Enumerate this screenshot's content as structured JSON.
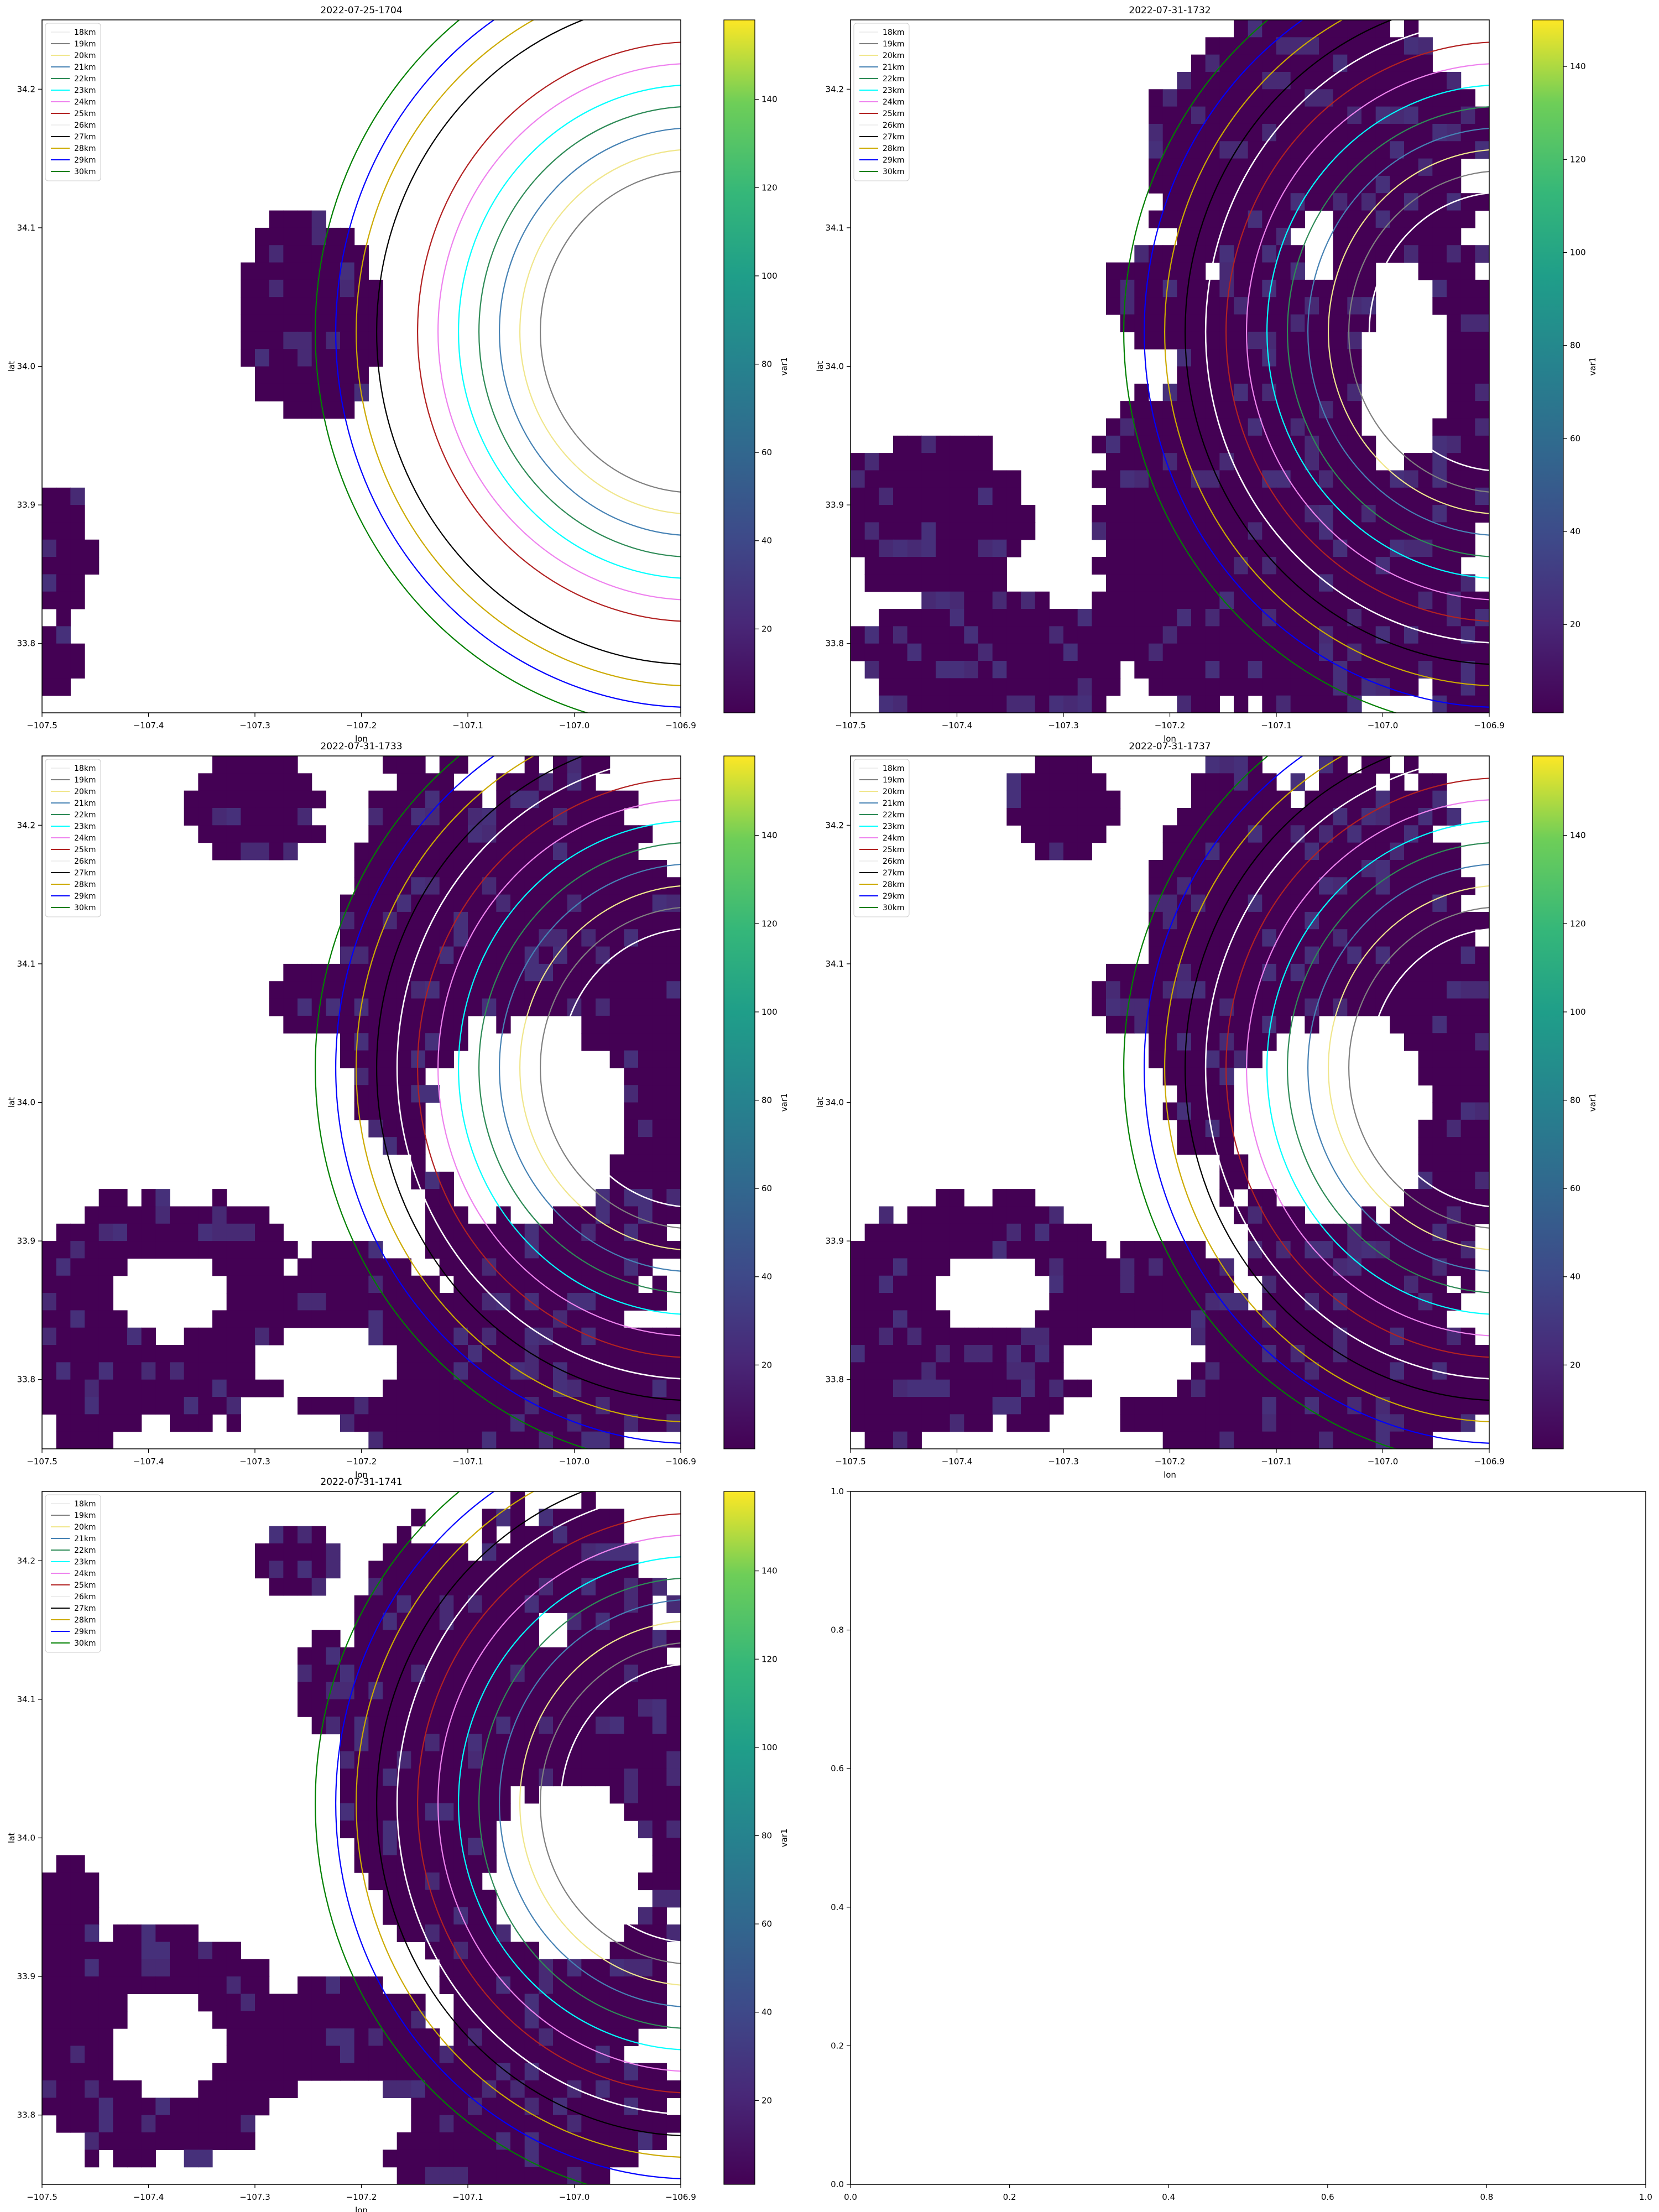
{
  "figure": {
    "colorbar_label": "var1",
    "colorbar_ticks": [
      "20",
      "40",
      "60",
      "80",
      "100",
      "120",
      "140"
    ],
    "x_ticks": [
      "−107.5",
      "−107.4",
      "−107.3",
      "−107.2",
      "−107.1",
      "−107.0",
      "−106.9"
    ],
    "y_ticks": [
      "33.8",
      "33.9",
      "34.0",
      "34.1",
      "34.2"
    ],
    "empty_x_ticks": [
      "0.0",
      "0.2",
      "0.4",
      "0.6",
      "0.8",
      "1.0"
    ],
    "empty_y_ticks": [
      "0.0",
      "0.2",
      "0.4",
      "0.6",
      "0.8",
      "1.0"
    ],
    "colormap": "viridis",
    "data_color": "#440154"
  },
  "chart_data": [
    {
      "type": "heatmap",
      "title": "2022-07-25-1704",
      "xlabel": "lon",
      "ylabel": "lat",
      "xlim": [
        -107.5,
        -106.9
      ],
      "ylim": [
        33.75,
        34.25
      ],
      "colorbar": {
        "label": "var1",
        "range": [
          1,
          158
        ]
      },
      "legend_position": "upper left",
      "series": [
        {
          "name": "18km",
          "radius_km": 18,
          "color": "#ffffff"
        },
        {
          "name": "19km",
          "radius_km": 19,
          "color": "#808080"
        },
        {
          "name": "20km",
          "radius_km": 20,
          "color": "#f0e68c"
        },
        {
          "name": "21km",
          "radius_km": 21,
          "color": "#4682b4"
        },
        {
          "name": "22km",
          "radius_km": 22,
          "color": "#2e8b57"
        },
        {
          "name": "23km",
          "radius_km": 23,
          "color": "#00ffff"
        },
        {
          "name": "24km",
          "radius_km": 24,
          "color": "#ee82ee"
        },
        {
          "name": "25km",
          "radius_km": 25,
          "color": "#b22222"
        },
        {
          "name": "26km",
          "radius_km": 26,
          "color": "#ffffff"
        },
        {
          "name": "27km",
          "radius_km": 27,
          "color": "#000000"
        },
        {
          "name": "28km",
          "radius_km": 28,
          "color": "#ccaa00"
        },
        {
          "name": "29km",
          "radius_km": 29,
          "color": "#0000ff"
        },
        {
          "name": "30km",
          "radius_km": 30,
          "color": "#008000"
        }
      ]
    },
    {
      "type": "heatmap",
      "title": "2022-07-31-1732",
      "xlabel": "lon",
      "ylabel": "lat",
      "xlim": [
        -107.5,
        -106.9
      ],
      "ylim": [
        33.75,
        34.25
      ],
      "colorbar": {
        "label": "var1",
        "range": [
          1,
          150
        ]
      },
      "legend_position": "upper left",
      "series": [
        {
          "name": "18km",
          "radius_km": 18,
          "color": "#ffffff"
        },
        {
          "name": "19km",
          "radius_km": 19,
          "color": "#808080"
        },
        {
          "name": "20km",
          "radius_km": 20,
          "color": "#f0e68c"
        },
        {
          "name": "21km",
          "radius_km": 21,
          "color": "#4682b4"
        },
        {
          "name": "22km",
          "radius_km": 22,
          "color": "#2e8b57"
        },
        {
          "name": "23km",
          "radius_km": 23,
          "color": "#00ffff"
        },
        {
          "name": "24km",
          "radius_km": 24,
          "color": "#ee82ee"
        },
        {
          "name": "25km",
          "radius_km": 25,
          "color": "#b22222"
        },
        {
          "name": "26km",
          "radius_km": 26,
          "color": "#ffffff"
        },
        {
          "name": "27km",
          "radius_km": 27,
          "color": "#000000"
        },
        {
          "name": "28km",
          "radius_km": 28,
          "color": "#ccaa00"
        },
        {
          "name": "29km",
          "radius_km": 29,
          "color": "#0000ff"
        },
        {
          "name": "30km",
          "radius_km": 30,
          "color": "#008000"
        }
      ]
    },
    {
      "type": "heatmap",
      "title": "2022-07-31-1733",
      "xlabel": "lon",
      "ylabel": "lat",
      "xlim": [
        -107.5,
        -106.9
      ],
      "ylim": [
        33.75,
        34.25
      ],
      "colorbar": {
        "label": "var1",
        "range": [
          1,
          158
        ]
      },
      "legend_position": "upper left",
      "series": [
        {
          "name": "18km",
          "radius_km": 18,
          "color": "#ffffff"
        },
        {
          "name": "19km",
          "radius_km": 19,
          "color": "#808080"
        },
        {
          "name": "20km",
          "radius_km": 20,
          "color": "#f0e68c"
        },
        {
          "name": "21km",
          "radius_km": 21,
          "color": "#4682b4"
        },
        {
          "name": "22km",
          "radius_km": 22,
          "color": "#2e8b57"
        },
        {
          "name": "23km",
          "radius_km": 23,
          "color": "#00ffff"
        },
        {
          "name": "24km",
          "radius_km": 24,
          "color": "#ee82ee"
        },
        {
          "name": "25km",
          "radius_km": 25,
          "color": "#b22222"
        },
        {
          "name": "26km",
          "radius_km": 26,
          "color": "#ffffff"
        },
        {
          "name": "27km",
          "radius_km": 27,
          "color": "#000000"
        },
        {
          "name": "28km",
          "radius_km": 28,
          "color": "#ccaa00"
        },
        {
          "name": "29km",
          "radius_km": 29,
          "color": "#0000ff"
        },
        {
          "name": "30km",
          "radius_km": 30,
          "color": "#008000"
        }
      ]
    },
    {
      "type": "heatmap",
      "title": "2022-07-31-1737",
      "xlabel": "lon",
      "ylabel": "lat",
      "xlim": [
        -107.5,
        -106.9
      ],
      "ylim": [
        33.75,
        34.25
      ],
      "colorbar": {
        "label": "var1",
        "range": [
          1,
          158
        ]
      },
      "legend_position": "upper left",
      "series": [
        {
          "name": "18km",
          "radius_km": 18,
          "color": "#ffffff"
        },
        {
          "name": "19km",
          "radius_km": 19,
          "color": "#808080"
        },
        {
          "name": "20km",
          "radius_km": 20,
          "color": "#f0e68c"
        },
        {
          "name": "21km",
          "radius_km": 21,
          "color": "#4682b4"
        },
        {
          "name": "22km",
          "radius_km": 22,
          "color": "#2e8b57"
        },
        {
          "name": "23km",
          "radius_km": 23,
          "color": "#00ffff"
        },
        {
          "name": "24km",
          "radius_km": 24,
          "color": "#ee82ee"
        },
        {
          "name": "25km",
          "radius_km": 25,
          "color": "#b22222"
        },
        {
          "name": "26km",
          "radius_km": 26,
          "color": "#ffffff"
        },
        {
          "name": "27km",
          "radius_km": 27,
          "color": "#000000"
        },
        {
          "name": "28km",
          "radius_km": 28,
          "color": "#ccaa00"
        },
        {
          "name": "29km",
          "radius_km": 29,
          "color": "#0000ff"
        },
        {
          "name": "30km",
          "radius_km": 30,
          "color": "#008000"
        }
      ]
    },
    {
      "type": "heatmap",
      "title": "2022-07-31-1741",
      "xlabel": "lon",
      "ylabel": "lat",
      "xlim": [
        -107.5,
        -106.9
      ],
      "ylim": [
        33.75,
        34.25
      ],
      "colorbar": {
        "label": "var1",
        "range": [
          1,
          158
        ]
      },
      "legend_position": "upper left",
      "series": [
        {
          "name": "18km",
          "radius_km": 18,
          "color": "#ffffff"
        },
        {
          "name": "19km",
          "radius_km": 19,
          "color": "#808080"
        },
        {
          "name": "20km",
          "radius_km": 20,
          "color": "#f0e68c"
        },
        {
          "name": "21km",
          "radius_km": 21,
          "color": "#4682b4"
        },
        {
          "name": "22km",
          "radius_km": 22,
          "color": "#2e8b57"
        },
        {
          "name": "23km",
          "radius_km": 23,
          "color": "#00ffff"
        },
        {
          "name": "24km",
          "radius_km": 24,
          "color": "#ee82ee"
        },
        {
          "name": "25km",
          "radius_km": 25,
          "color": "#b22222"
        },
        {
          "name": "26km",
          "radius_km": 26,
          "color": "#ffffff"
        },
        {
          "name": "27km",
          "radius_km": 27,
          "color": "#000000"
        },
        {
          "name": "28km",
          "radius_km": 28,
          "color": "#ccaa00"
        },
        {
          "name": "29km",
          "radius_km": 29,
          "color": "#0000ff"
        },
        {
          "name": "30km",
          "radius_km": 30,
          "color": "#008000"
        }
      ]
    },
    {
      "type": "line",
      "title": "",
      "xlim": [
        0,
        1
      ],
      "ylim": [
        0,
        1
      ],
      "series": []
    }
  ]
}
